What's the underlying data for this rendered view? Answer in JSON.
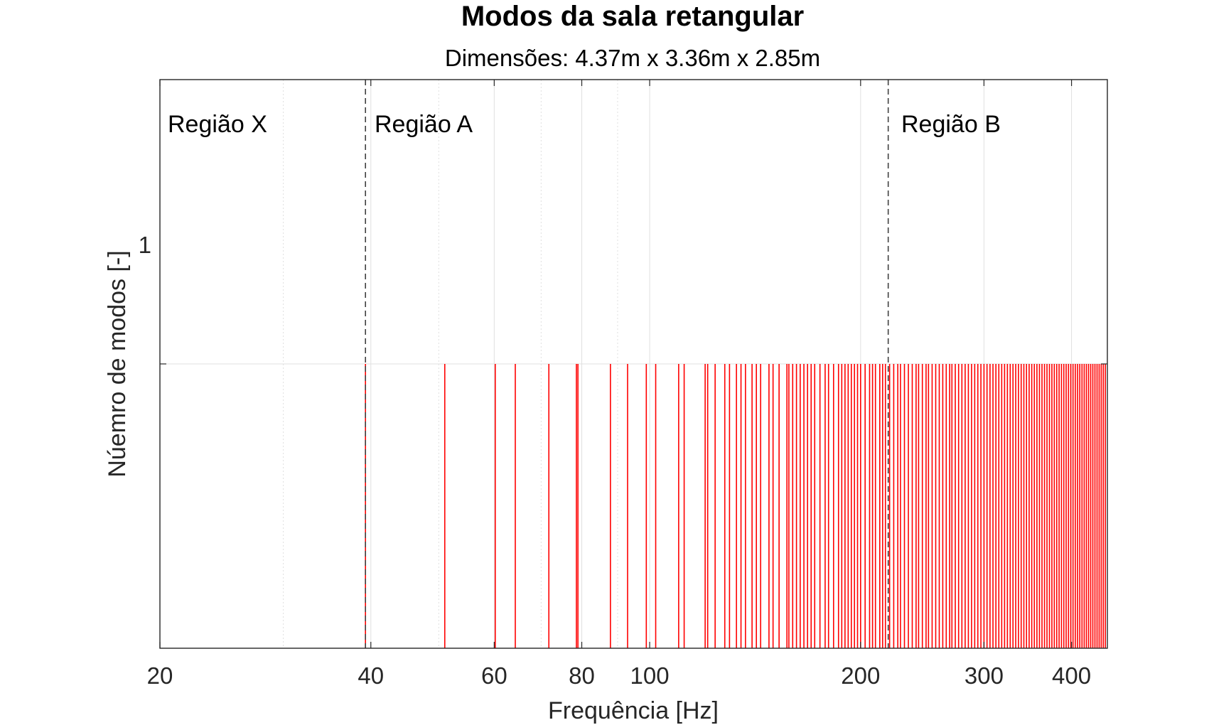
{
  "chart_data": {
    "type": "bar",
    "title": "Modos da sala retangular",
    "subtitle": "Dimensões: 4.37m x 3.36m x 2.85m",
    "xlabel": "Frequência [Hz]",
    "ylabel": "Núemro de modos [-]",
    "x_scale": "log",
    "xlim": [
      20,
      450
    ],
    "ylim": [
      0,
      2
    ],
    "grid": true,
    "x_ticks": [
      20,
      40,
      60,
      80,
      100,
      200,
      300,
      400
    ],
    "x_tick_labels": [
      "20",
      "40",
      "60",
      "80",
      "100",
      "200",
      "300",
      "400"
    ],
    "y_ticks": [
      1
    ],
    "y_tick_labels": [
      "1"
    ],
    "colors": {
      "bars": "#ff0000",
      "boundary": "#404040",
      "grid": "#e0e0e0",
      "axes": "#262626"
    },
    "regions": [
      {
        "label": "Região X"
      },
      {
        "label": "Região A"
      },
      {
        "label": "Região B"
      }
    ],
    "region_boundaries_hz": [
      39.3,
      219
    ],
    "series": [
      {
        "values_y": 1,
        "x": [
          39.3,
          51.0,
          60.2,
          64.3,
          71.8,
          78.6,
          79.0,
          87.9,
          93.0,
          98.9,
          102.0,
          110.0,
          112.0,
          120.0,
          121.0,
          124.0,
          128.0,
          130.0,
          133.0,
          135.0,
          137.0,
          140.0,
          142.0,
          144.0,
          148.0,
          150.0,
          153.0,
          157.0,
          158.0,
          160.0,
          162.0,
          164.0,
          166.0,
          168.0,
          170.0,
          172.0,
          175.0,
          178.0,
          180.0,
          183.0,
          186.0,
          188.0,
          190.0,
          192.0,
          194.0,
          196.0,
          198.0,
          200.0,
          203.0,
          206.0,
          208.0,
          210.0,
          213.0,
          215.0,
          217.0,
          220.0,
          223.0,
          226.0,
          228.0,
          231.0,
          234.0,
          237.0,
          240.0,
          242.0,
          245.0,
          248.0,
          250.0,
          253.0,
          256.0,
          259.0,
          262.0,
          265.0,
          268.0,
          270.0,
          273.0,
          276.0,
          279.0,
          282.0,
          285.0,
          288.0,
          291.0,
          294.0,
          297.0,
          300.0,
          303.0,
          306.0,
          309.0,
          312.0,
          315.0,
          318.0,
          321.0,
          324.0,
          327.0,
          330.0,
          333.0,
          336.0,
          339.0,
          342.0,
          345.0,
          348.0,
          351.0,
          354.0,
          357.0,
          360.0,
          363.0,
          366.0,
          369.0,
          372.0,
          375.0,
          378.0,
          381.0,
          384.0,
          387.0,
          390.0,
          393.0,
          396.0,
          399.0,
          402.0,
          405.0,
          408.0,
          411.0,
          414.0,
          417.0,
          420.0,
          423.0,
          426.0,
          429.0,
          432.0,
          435.0,
          438.0,
          441.0,
          444.0,
          447.0
        ]
      }
    ]
  }
}
